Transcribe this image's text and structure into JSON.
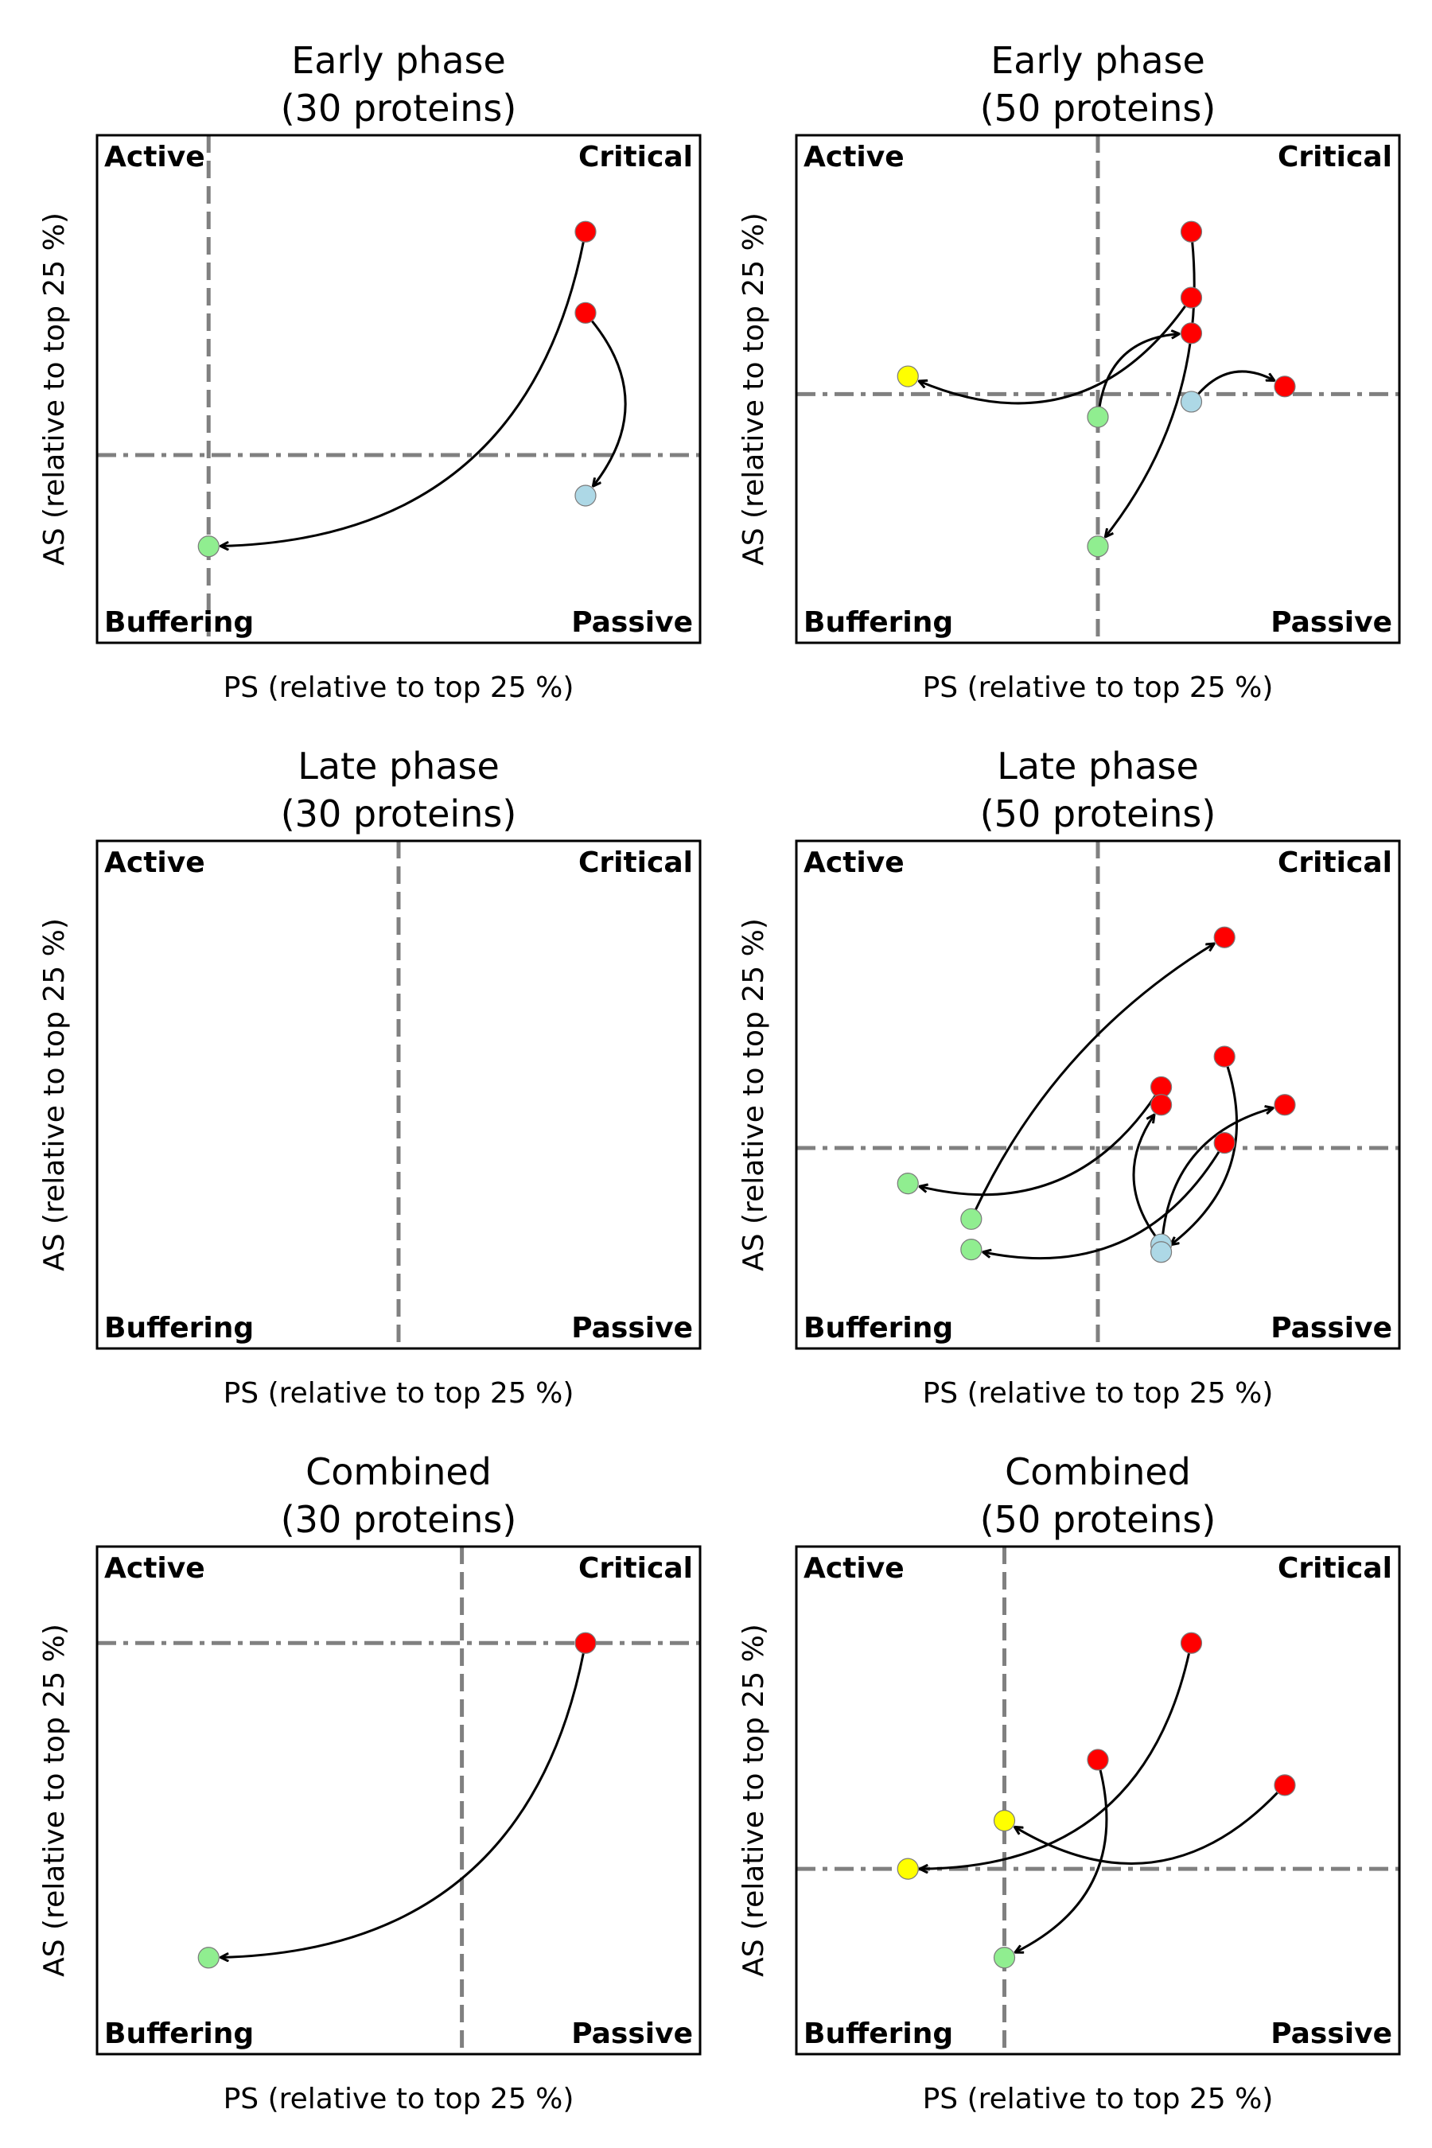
{
  "figure": {
    "xlabel": "PS (relative to top 25 %)",
    "ylabel": "AS (relative to top 25 %)"
  },
  "quadrants": {
    "top_left": "Active",
    "top_right": "Critical",
    "bottom_left": "Buffering",
    "bottom_right": "Passive"
  },
  "colors": {
    "red": "#ff0000",
    "green": "#90ee90",
    "lightblue": "#add8e6",
    "yellow": "#ffff00",
    "threshold": "#808080"
  },
  "chart_data": [
    {
      "type": "scatter",
      "title": "Early phase\n(30 proteins)",
      "title_lines": [
        "Early phase",
        "(30 proteins)"
      ],
      "xlim": [
        0,
        1
      ],
      "ylim": [
        0,
        1
      ],
      "ps_threshold": 0.185,
      "as_threshold": 0.37,
      "points": [
        {
          "x": 0.81,
          "y": 0.81,
          "color": "red"
        },
        {
          "x": 0.81,
          "y": 0.65,
          "color": "red"
        },
        {
          "x": 0.81,
          "y": 0.29,
          "color": "lightblue"
        },
        {
          "x": 0.185,
          "y": 0.19,
          "color": "green"
        }
      ],
      "arrows": [
        {
          "from": [
            0.81,
            0.81
          ],
          "to": [
            0.185,
            0.19
          ],
          "rad": 0.4
        },
        {
          "from": [
            0.81,
            0.65
          ],
          "to": [
            0.81,
            0.29
          ],
          "rad": 0.4
        }
      ]
    },
    {
      "type": "scatter",
      "title": "Early phase\n(50 proteins)",
      "title_lines": [
        "Early phase",
        "(50 proteins)"
      ],
      "xlim": [
        0,
        1
      ],
      "ylim": [
        0,
        1
      ],
      "ps_threshold": 0.5,
      "as_threshold": 0.49,
      "points": [
        {
          "x": 0.655,
          "y": 0.81,
          "color": "red"
        },
        {
          "x": 0.655,
          "y": 0.68,
          "color": "red"
        },
        {
          "x": 0.655,
          "y": 0.61,
          "color": "red"
        },
        {
          "x": 0.81,
          "y": 0.505,
          "color": "red"
        },
        {
          "x": 0.655,
          "y": 0.475,
          "color": "lightblue"
        },
        {
          "x": 0.5,
          "y": 0.445,
          "color": "green"
        },
        {
          "x": 0.5,
          "y": 0.19,
          "color": "green"
        },
        {
          "x": 0.185,
          "y": 0.525,
          "color": "yellow"
        }
      ],
      "arrows": [
        {
          "from": [
            0.655,
            0.81
          ],
          "to": [
            0.5,
            0.19
          ],
          "rad": 0.2
        },
        {
          "from": [
            0.655,
            0.68
          ],
          "to": [
            0.185,
            0.525
          ],
          "rad": 0.4
        },
        {
          "from": [
            0.5,
            0.445
          ],
          "to": [
            0.655,
            0.61
          ],
          "rad": 0.4
        },
        {
          "from": [
            0.655,
            0.475
          ],
          "to": [
            0.81,
            0.505
          ],
          "rad": 0.4
        }
      ]
    },
    {
      "type": "scatter",
      "title": "Late phase\n(30 proteins)",
      "title_lines": [
        "Late phase",
        "(30 proteins)"
      ],
      "xlim": [
        0,
        1
      ],
      "ylim": [
        0,
        1
      ],
      "ps_threshold": 0.5,
      "as_threshold": null,
      "points": [],
      "arrows": []
    },
    {
      "type": "scatter",
      "title": "Late phase\n(50 proteins)",
      "title_lines": [
        "Late phase",
        "(50 proteins)"
      ],
      "xlim": [
        0,
        1
      ],
      "ylim": [
        0,
        1
      ],
      "ps_threshold": 0.5,
      "as_threshold": 0.395,
      "points": [
        {
          "x": 0.71,
          "y": 0.81,
          "color": "red"
        },
        {
          "x": 0.71,
          "y": 0.575,
          "color": "red"
        },
        {
          "x": 0.605,
          "y": 0.515,
          "color": "red"
        },
        {
          "x": 0.605,
          "y": 0.48,
          "color": "red"
        },
        {
          "x": 0.81,
          "y": 0.48,
          "color": "red"
        },
        {
          "x": 0.71,
          "y": 0.405,
          "color": "red"
        },
        {
          "x": 0.185,
          "y": 0.325,
          "color": "green"
        },
        {
          "x": 0.29,
          "y": 0.255,
          "color": "green"
        },
        {
          "x": 0.29,
          "y": 0.195,
          "color": "green"
        },
        {
          "x": 0.605,
          "y": 0.205,
          "color": "lightblue"
        },
        {
          "x": 0.605,
          "y": 0.19,
          "color": "lightblue"
        }
      ],
      "arrows": [
        {
          "from": [
            0.29,
            0.255
          ],
          "to": [
            0.71,
            0.81
          ],
          "rad": 0.15
        },
        {
          "from": [
            0.605,
            0.515
          ],
          "to": [
            0.185,
            0.325
          ],
          "rad": 0.35
        },
        {
          "from": [
            0.71,
            0.405
          ],
          "to": [
            0.29,
            0.195
          ],
          "rad": 0.35
        },
        {
          "from": [
            0.71,
            0.575
          ],
          "to": [
            0.605,
            0.19
          ],
          "rad": 0.35
        },
        {
          "from": [
            0.605,
            0.205
          ],
          "to": [
            0.605,
            0.48
          ],
          "rad": 0.35
        },
        {
          "from": [
            0.605,
            0.19
          ],
          "to": [
            0.81,
            0.48
          ],
          "rad": 0.35
        }
      ]
    },
    {
      "type": "scatter",
      "title": "Combined\n(30 proteins)",
      "title_lines": [
        "Combined",
        "(30 proteins)"
      ],
      "xlim": [
        0,
        1
      ],
      "ylim": [
        0,
        1
      ],
      "ps_threshold": 0.605,
      "as_threshold": 0.81,
      "points": [
        {
          "x": 0.81,
          "y": 0.81,
          "color": "red"
        },
        {
          "x": 0.185,
          "y": 0.19,
          "color": "green"
        }
      ],
      "arrows": [
        {
          "from": [
            0.81,
            0.81
          ],
          "to": [
            0.185,
            0.19
          ],
          "rad": 0.4
        }
      ]
    },
    {
      "type": "scatter",
      "title": "Combined\n(50 proteins)",
      "title_lines": [
        "Combined",
        "(50 proteins)"
      ],
      "xlim": [
        0,
        1
      ],
      "ylim": [
        0,
        1
      ],
      "ps_threshold": 0.345,
      "as_threshold": 0.365,
      "points": [
        {
          "x": 0.655,
          "y": 0.81,
          "color": "red"
        },
        {
          "x": 0.5,
          "y": 0.58,
          "color": "red"
        },
        {
          "x": 0.81,
          "y": 0.53,
          "color": "red"
        },
        {
          "x": 0.345,
          "y": 0.46,
          "color": "yellow"
        },
        {
          "x": 0.185,
          "y": 0.365,
          "color": "yellow"
        },
        {
          "x": 0.345,
          "y": 0.19,
          "color": "green"
        }
      ],
      "arrows": [
        {
          "from": [
            0.655,
            0.81
          ],
          "to": [
            0.185,
            0.365
          ],
          "rad": 0.4
        },
        {
          "from": [
            0.81,
            0.53
          ],
          "to": [
            0.345,
            0.46
          ],
          "rad": 0.4
        },
        {
          "from": [
            0.5,
            0.58
          ],
          "to": [
            0.345,
            0.19
          ],
          "rad": 0.4
        }
      ]
    }
  ]
}
